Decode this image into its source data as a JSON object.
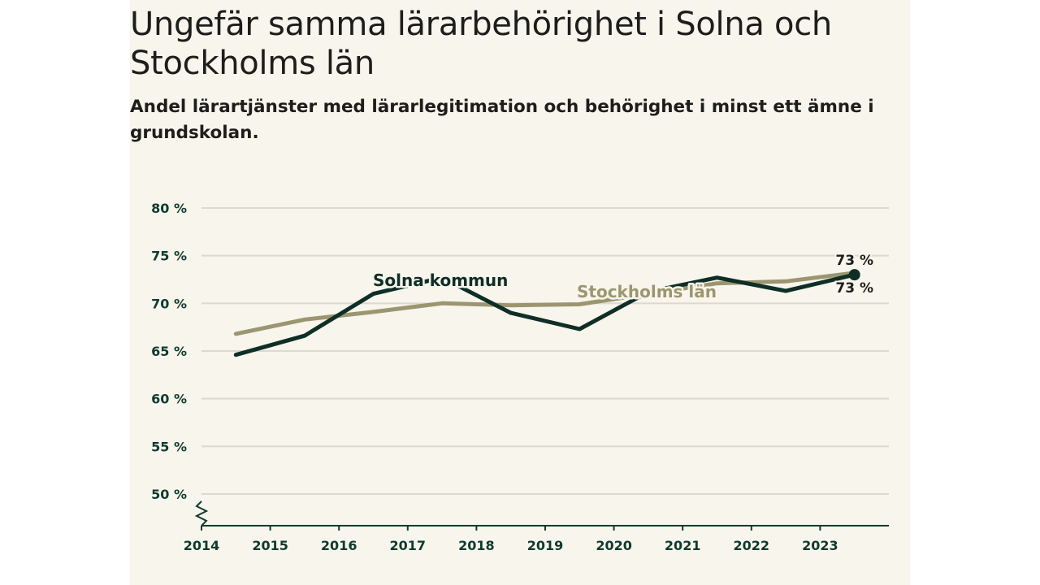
{
  "header": {
    "title": "Ungefär samma lärarbehörighet i Solna och Stockholms län",
    "subtitle": "Andel lärartjänster med lärarlegitimation och behörighet i minst ett ämne i grundskolan."
  },
  "colors": {
    "background": "#f7f5ec",
    "solna": "#0f2e26",
    "stockholm": "#9b9670",
    "grid": "#dcd9cf",
    "axis": "#0f3a2f"
  },
  "chart_data": {
    "type": "line",
    "title": "Ungefär samma lärarbehörighet i Solna och Stockholms län",
    "subtitle": "Andel lärartjänster med lärarlegitimation och behörighet i minst ett ämne i grundskolan.",
    "xlabel": "",
    "ylabel": "",
    "x_ticks": [
      "2014",
      "2015",
      "2016",
      "2017",
      "2018",
      "2019",
      "2020",
      "2021",
      "2022",
      "2023"
    ],
    "x_range": [
      2014,
      2024
    ],
    "y_ticks": [
      "50 %",
      "55 %",
      "60 %",
      "65 %",
      "70 %",
      "75 %",
      "80 %"
    ],
    "y_tick_values": [
      50,
      55,
      60,
      65,
      70,
      75,
      80
    ],
    "ylim": [
      50,
      80
    ],
    "axis_break": true,
    "series": [
      {
        "name": "Solna kommun",
        "label": "Solna kommun",
        "color": "#0f2e26",
        "x": [
          2014.5,
          2015.5,
          2016.5,
          2017.5,
          2018.5,
          2019.5,
          2020.5,
          2021.5,
          2022.5,
          2023.5
        ],
        "values": [
          64.6,
          66.6,
          71.0,
          72.7,
          69.0,
          67.3,
          71.2,
          72.7,
          71.3,
          73.0
        ],
        "end_label": "73 %"
      },
      {
        "name": "Stockholms län",
        "label": "Stockholms län",
        "color": "#9b9670",
        "x": [
          2014.5,
          2015.5,
          2016.5,
          2017.5,
          2018.5,
          2019.5,
          2020.5,
          2021.5,
          2022.5,
          2023.5
        ],
        "values": [
          66.8,
          68.3,
          69.1,
          70.0,
          69.8,
          69.9,
          71.0,
          72.1,
          72.3,
          73.2
        ],
        "end_label": "73 %"
      }
    ]
  }
}
